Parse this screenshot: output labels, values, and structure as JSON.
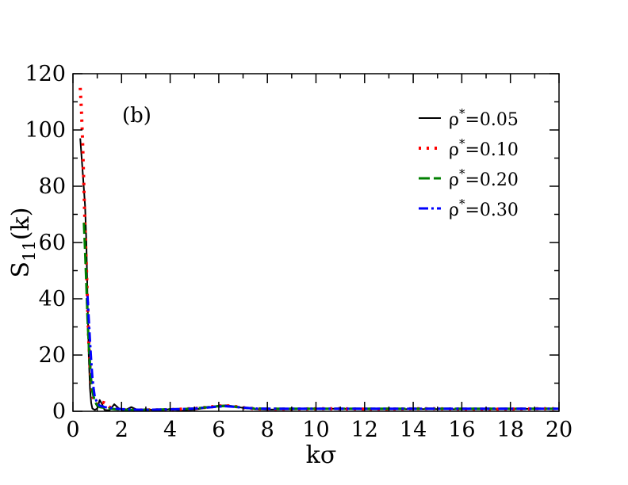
{
  "chart_data": {
    "type": "line",
    "xlabel": "kσ",
    "ylabel_main": "S",
    "ylabel_sub": "11",
    "ylabel_tail": "(k)",
    "annotation": "(b)",
    "xlim": [
      0,
      20
    ],
    "ylim": [
      0,
      120
    ],
    "xticks": [
      0,
      2,
      4,
      6,
      8,
      10,
      12,
      14,
      16,
      18,
      20
    ],
    "yticks": [
      0,
      20,
      40,
      60,
      80,
      100,
      120
    ],
    "legend_position": "top-right",
    "grid": false,
    "series": [
      {
        "name_prefix": "ρ",
        "name_sup": "*",
        "name_suffix": "=0.05",
        "color": "#000000",
        "style": "solid",
        "x": [
          0.3,
          0.4,
          0.5,
          0.55,
          0.6,
          0.65,
          0.7,
          0.75,
          0.8,
          0.9,
          1.0,
          1.1,
          1.2,
          1.3,
          1.5,
          1.7,
          1.9,
          2.1,
          2.4,
          2.7,
          3.0,
          3.5,
          4.0,
          4.5,
          5.0,
          5.5,
          6.0,
          6.3,
          6.6,
          7.0,
          7.5,
          8.0,
          9.0,
          10.0,
          11.0,
          12.0,
          13.0,
          14.0,
          15.0,
          16.0,
          17.0,
          18.0,
          19.0,
          20.0
        ],
        "y": [
          97,
          85,
          73,
          60,
          40,
          20,
          8,
          3,
          1,
          0.5,
          1,
          4,
          2.5,
          0.5,
          0.3,
          2.5,
          1,
          0.2,
          1.5,
          0.3,
          0.8,
          0.2,
          0.8,
          0.2,
          0.6,
          1.3,
          2.0,
          2.1,
          1.8,
          1.2,
          0.8,
          0.6,
          0.7,
          0.9,
          0.9,
          0.7,
          0.7,
          0.8,
          0.8,
          0.7,
          0.7,
          0.8,
          0.9,
          0.9
        ]
      },
      {
        "name_prefix": "ρ",
        "name_sup": "*",
        "name_suffix": "=0.10",
        "color": "#ff0000",
        "style": "dotted",
        "x": [
          0.3,
          0.35,
          0.4,
          0.45,
          0.5,
          0.55,
          0.6,
          0.65,
          0.7,
          0.75,
          0.8,
          0.9,
          1.0,
          1.1,
          1.3,
          1.5,
          1.7,
          2.0,
          2.5,
          3.0,
          3.5,
          4.0,
          4.5,
          5.0,
          5.5,
          6.0,
          6.3,
          6.6,
          7.0,
          7.5,
          8.0,
          9.0,
          10.0,
          11.0,
          12.0,
          13.0,
          14.0,
          15.0,
          16.0,
          17.0,
          18.0,
          19.0,
          20.0
        ],
        "y": [
          115,
          107,
          95,
          80,
          65,
          52,
          38,
          25,
          16,
          10,
          6,
          3,
          2.5,
          3.5,
          3,
          1.5,
          1,
          0.5,
          0.4,
          0.5,
          0.5,
          0.6,
          0.8,
          1.0,
          1.4,
          1.9,
          2.0,
          1.8,
          1.3,
          0.9,
          0.8,
          0.8,
          0.9,
          0.9,
          0.8,
          0.8,
          0.9,
          0.9,
          0.8,
          0.8,
          0.8,
          0.9,
          0.9
        ]
      },
      {
        "name_prefix": "ρ",
        "name_sup": "*",
        "name_suffix": "=0.20",
        "color": "#008000",
        "style": "dashed",
        "x": [
          0.45,
          0.5,
          0.55,
          0.6,
          0.65,
          0.7,
          0.75,
          0.8,
          0.9,
          1.0,
          1.1,
          1.3,
          1.5,
          1.7,
          2.0,
          2.5,
          3.0,
          3.5,
          4.0,
          4.5,
          5.0,
          5.5,
          6.0,
          6.3,
          6.6,
          7.0,
          7.5,
          8.0,
          9.0,
          10.0,
          11.0,
          12.0,
          13.0,
          14.0,
          15.0,
          16.0,
          17.0,
          18.0,
          19.0,
          20.0
        ],
        "y": [
          67,
          57,
          45,
          33,
          24,
          17,
          11,
          7,
          3.5,
          2,
          1.5,
          1.2,
          1.0,
          0.8,
          0.6,
          0.5,
          0.5,
          0.6,
          0.7,
          0.8,
          1.0,
          1.4,
          1.8,
          1.9,
          1.7,
          1.3,
          1.0,
          0.9,
          0.9,
          0.9,
          0.9,
          0.9,
          0.9,
          0.9,
          0.9,
          0.9,
          0.9,
          0.9,
          0.9,
          0.9
        ]
      },
      {
        "name_prefix": "ρ",
        "name_sup": "*",
        "name_suffix": "=0.30",
        "color": "#0000ff",
        "style": "dashdot",
        "x": [
          0.6,
          0.65,
          0.7,
          0.75,
          0.8,
          0.85,
          0.9,
          1.0,
          1.1,
          1.3,
          1.5,
          1.7,
          2.0,
          2.5,
          3.0,
          3.5,
          4.0,
          4.5,
          5.0,
          5.5,
          6.0,
          6.3,
          6.6,
          7.0,
          7.5,
          8.0,
          9.0,
          10.0,
          11.0,
          12.0,
          13.0,
          14.0,
          15.0,
          16.0,
          17.0,
          18.0,
          19.0,
          20.0
        ],
        "y": [
          41,
          33,
          25,
          18,
          12,
          8,
          5,
          3,
          2,
          1.5,
          1.2,
          1.0,
          0.8,
          0.6,
          0.5,
          0.6,
          0.7,
          0.8,
          1.0,
          1.3,
          1.7,
          1.8,
          1.6,
          1.3,
          1.0,
          0.9,
          0.9,
          0.9,
          0.9,
          0.9,
          0.9,
          0.9,
          0.9,
          0.9,
          0.9,
          0.9,
          0.9,
          0.9
        ]
      }
    ]
  }
}
